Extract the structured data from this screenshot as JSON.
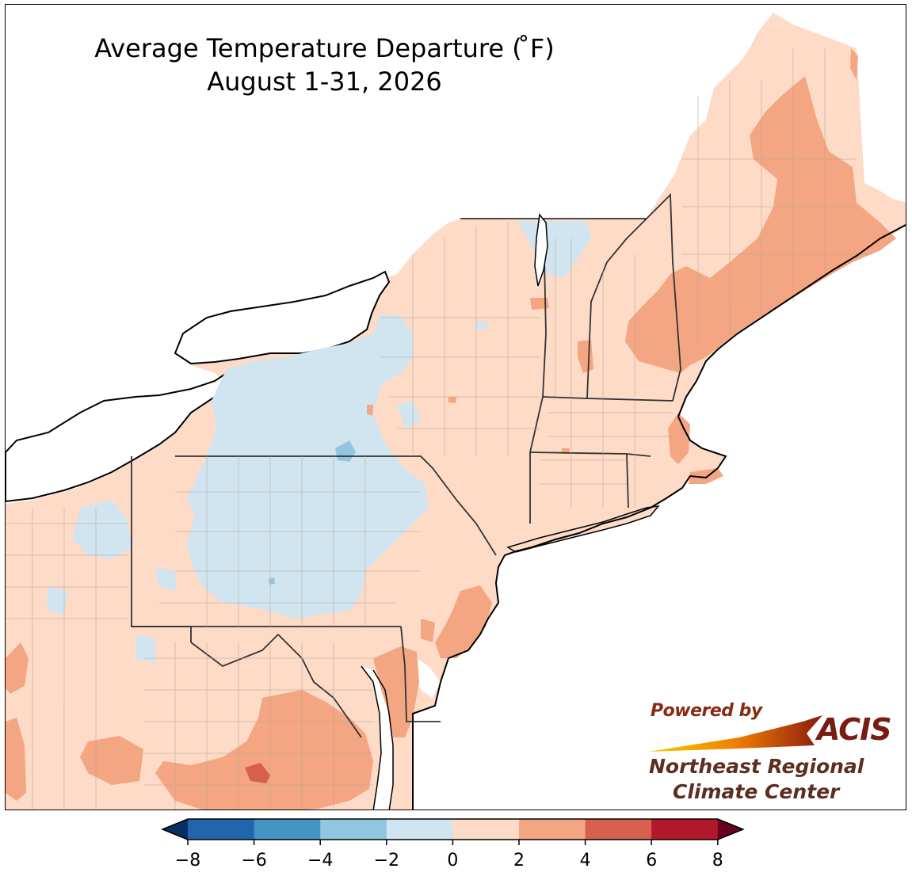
{
  "title": {
    "line1": "Average Temperature Departure ( ̊F)",
    "line2": "August 1-31, 2026"
  },
  "logo": {
    "powered_by": "Powered by",
    "acis": "ACIS",
    "org_line1": "Northeast Regional",
    "org_line2": "Climate Center"
  },
  "colorbar": {
    "ticks": [
      "−8",
      "−6",
      "−4",
      "−2",
      "0",
      "2",
      "4",
      "6",
      "8"
    ],
    "bins": [
      {
        "range": "-8 to -6",
        "color": "#2166ac"
      },
      {
        "range": "-6 to -4",
        "color": "#4393c3"
      },
      {
        "range": "-4 to -2",
        "color": "#92c5de"
      },
      {
        "range": "-2 to 0",
        "color": "#d1e5f0"
      },
      {
        "range": "0 to 2",
        "color": "#fddbc7"
      },
      {
        "range": "2 to 4",
        "color": "#f4a582"
      },
      {
        "range": "4 to 6",
        "color": "#d6604d"
      },
      {
        "range": "6 to 8",
        "color": "#b2182b"
      }
    ],
    "under_color": "#053061",
    "over_color": "#67001f"
  }
}
